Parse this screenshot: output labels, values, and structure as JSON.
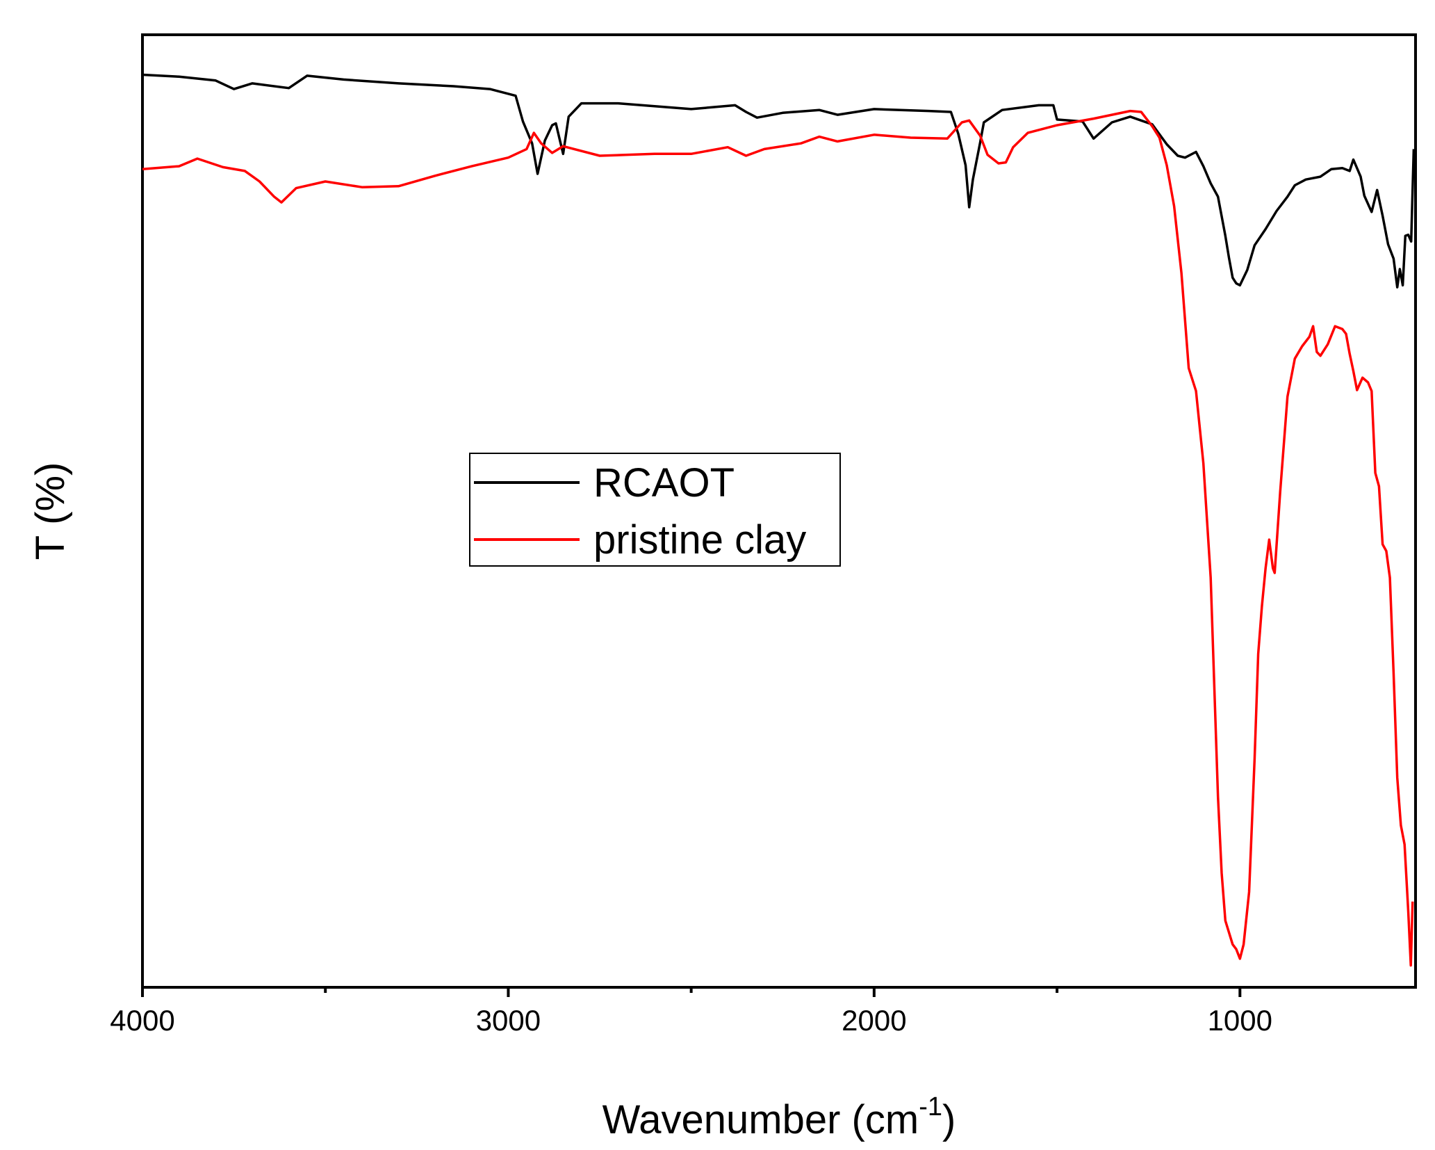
{
  "chart_data": {
    "type": "line",
    "title": "",
    "xlabel": "Wavenumber (cm",
    "xlabel_sup": "-1",
    "xlabel_close": ")",
    "ylabel": "T (%)",
    "xlim": [
      4000,
      520
    ],
    "ylim": [
      0,
      100
    ],
    "x_reversed": true,
    "y_tick_labels_shown": false,
    "x_ticks": [
      4000,
      3000,
      2000,
      1000
    ],
    "x_tick_labels": [
      "4000",
      "3000",
      "2000",
      "1000"
    ],
    "x_minor_ticks": [
      3500,
      2500,
      1500
    ],
    "grid": false,
    "legend_position": "center-left",
    "series": [
      {
        "name": "RCAOT",
        "color": "#000000",
        "points": [
          [
            4000,
            95.8
          ],
          [
            3900,
            95.6
          ],
          [
            3800,
            95.2
          ],
          [
            3750,
            94.3
          ],
          [
            3700,
            94.9
          ],
          [
            3600,
            94.4
          ],
          [
            3550,
            95.7
          ],
          [
            3450,
            95.3
          ],
          [
            3300,
            94.9
          ],
          [
            3150,
            94.6
          ],
          [
            3050,
            94.3
          ],
          [
            2980,
            93.6
          ],
          [
            2960,
            90.9
          ],
          [
            2935,
            88.6
          ],
          [
            2920,
            85.4
          ],
          [
            2900,
            88.9
          ],
          [
            2880,
            90.5
          ],
          [
            2870,
            90.7
          ],
          [
            2860,
            89.1
          ],
          [
            2850,
            87.5
          ],
          [
            2835,
            91.4
          ],
          [
            2800,
            92.8
          ],
          [
            2700,
            92.8
          ],
          [
            2500,
            92.2
          ],
          [
            2380,
            92.6
          ],
          [
            2350,
            91.9
          ],
          [
            2320,
            91.3
          ],
          [
            2250,
            91.8
          ],
          [
            2150,
            92.1
          ],
          [
            2100,
            91.6
          ],
          [
            2000,
            92.2
          ],
          [
            1850,
            92.0
          ],
          [
            1790,
            91.9
          ],
          [
            1770,
            89.6
          ],
          [
            1750,
            86.3
          ],
          [
            1740,
            81.9
          ],
          [
            1730,
            84.8
          ],
          [
            1710,
            88.7
          ],
          [
            1700,
            90.8
          ],
          [
            1650,
            92.1
          ],
          [
            1550,
            92.6
          ],
          [
            1510,
            92.6
          ],
          [
            1500,
            91.1
          ],
          [
            1430,
            90.9
          ],
          [
            1400,
            89.1
          ],
          [
            1350,
            90.8
          ],
          [
            1300,
            91.4
          ],
          [
            1240,
            90.6
          ],
          [
            1200,
            88.5
          ],
          [
            1170,
            87.3
          ],
          [
            1150,
            87.1
          ],
          [
            1120,
            87.7
          ],
          [
            1100,
            86.2
          ],
          [
            1080,
            84.4
          ],
          [
            1060,
            83.0
          ],
          [
            1040,
            78.9
          ],
          [
            1030,
            76.6
          ],
          [
            1020,
            74.5
          ],
          [
            1010,
            73.9
          ],
          [
            1000,
            73.7
          ],
          [
            980,
            75.3
          ],
          [
            960,
            77.9
          ],
          [
            930,
            79.6
          ],
          [
            900,
            81.5
          ],
          [
            870,
            83.0
          ],
          [
            850,
            84.2
          ],
          [
            820,
            84.8
          ],
          [
            780,
            85.1
          ],
          [
            750,
            85.9
          ],
          [
            720,
            86.0
          ],
          [
            700,
            85.7
          ],
          [
            690,
            86.9
          ],
          [
            670,
            85.1
          ],
          [
            660,
            83.1
          ],
          [
            640,
            81.4
          ],
          [
            625,
            83.7
          ],
          [
            610,
            81.0
          ],
          [
            595,
            78.0
          ],
          [
            580,
            76.5
          ],
          [
            570,
            73.5
          ],
          [
            563,
            75.4
          ],
          [
            555,
            73.7
          ],
          [
            548,
            78.9
          ],
          [
            540,
            79.0
          ],
          [
            532,
            78.3
          ],
          [
            525,
            88.0
          ]
        ]
      },
      {
        "name": "pristine clay",
        "color": "#ff0000",
        "points": [
          [
            4000,
            85.9
          ],
          [
            3900,
            86.2
          ],
          [
            3850,
            87.0
          ],
          [
            3780,
            86.1
          ],
          [
            3720,
            85.7
          ],
          [
            3680,
            84.6
          ],
          [
            3640,
            83.0
          ],
          [
            3620,
            82.4
          ],
          [
            3580,
            83.9
          ],
          [
            3500,
            84.6
          ],
          [
            3400,
            84.0
          ],
          [
            3300,
            84.1
          ],
          [
            3200,
            85.2
          ],
          [
            3100,
            86.2
          ],
          [
            3000,
            87.1
          ],
          [
            2950,
            88.0
          ],
          [
            2930,
            89.7
          ],
          [
            2910,
            88.6
          ],
          [
            2880,
            87.6
          ],
          [
            2850,
            88.3
          ],
          [
            2750,
            87.3
          ],
          [
            2600,
            87.5
          ],
          [
            2500,
            87.5
          ],
          [
            2400,
            88.2
          ],
          [
            2350,
            87.3
          ],
          [
            2300,
            88.0
          ],
          [
            2200,
            88.6
          ],
          [
            2150,
            89.3
          ],
          [
            2100,
            88.8
          ],
          [
            2000,
            89.5
          ],
          [
            1900,
            89.2
          ],
          [
            1800,
            89.1
          ],
          [
            1760,
            90.8
          ],
          [
            1740,
            91.0
          ],
          [
            1710,
            89.4
          ],
          [
            1690,
            87.4
          ],
          [
            1660,
            86.5
          ],
          [
            1640,
            86.6
          ],
          [
            1620,
            88.2
          ],
          [
            1580,
            89.7
          ],
          [
            1500,
            90.5
          ],
          [
            1400,
            91.2
          ],
          [
            1300,
            92.0
          ],
          [
            1270,
            91.9
          ],
          [
            1240,
            90.4
          ],
          [
            1220,
            89.2
          ],
          [
            1200,
            86.3
          ],
          [
            1180,
            82.0
          ],
          [
            1160,
            75.0
          ],
          [
            1140,
            65.0
          ],
          [
            1120,
            62.6
          ],
          [
            1100,
            55.0
          ],
          [
            1080,
            43.0
          ],
          [
            1060,
            20.0
          ],
          [
            1050,
            12.0
          ],
          [
            1040,
            7.0
          ],
          [
            1020,
            4.5
          ],
          [
            1010,
            4.0
          ],
          [
            1000,
            3.0
          ],
          [
            990,
            4.5
          ],
          [
            975,
            10.0
          ],
          [
            960,
            24.0
          ],
          [
            950,
            35.0
          ],
          [
            940,
            40.0
          ],
          [
            930,
            44.0
          ],
          [
            920,
            47.0
          ],
          [
            910,
            44.0
          ],
          [
            905,
            43.5
          ],
          [
            890,
            52.0
          ],
          [
            870,
            62.0
          ],
          [
            850,
            66.0
          ],
          [
            830,
            67.3
          ],
          [
            810,
            68.3
          ],
          [
            800,
            69.4
          ],
          [
            790,
            66.7
          ],
          [
            780,
            66.3
          ],
          [
            760,
            67.5
          ],
          [
            740,
            69.4
          ],
          [
            720,
            69.1
          ],
          [
            710,
            68.6
          ],
          [
            700,
            66.5
          ],
          [
            690,
            64.7
          ],
          [
            680,
            62.7
          ],
          [
            665,
            64.0
          ],
          [
            650,
            63.5
          ],
          [
            640,
            62.6
          ],
          [
            630,
            54.0
          ],
          [
            620,
            52.6
          ],
          [
            610,
            46.5
          ],
          [
            600,
            45.8
          ],
          [
            590,
            43.0
          ],
          [
            580,
            33.0
          ],
          [
            570,
            22.0
          ],
          [
            560,
            17.0
          ],
          [
            550,
            15.0
          ],
          [
            540,
            8.0
          ],
          [
            533,
            2.3
          ],
          [
            528,
            9.0
          ]
        ]
      }
    ]
  }
}
